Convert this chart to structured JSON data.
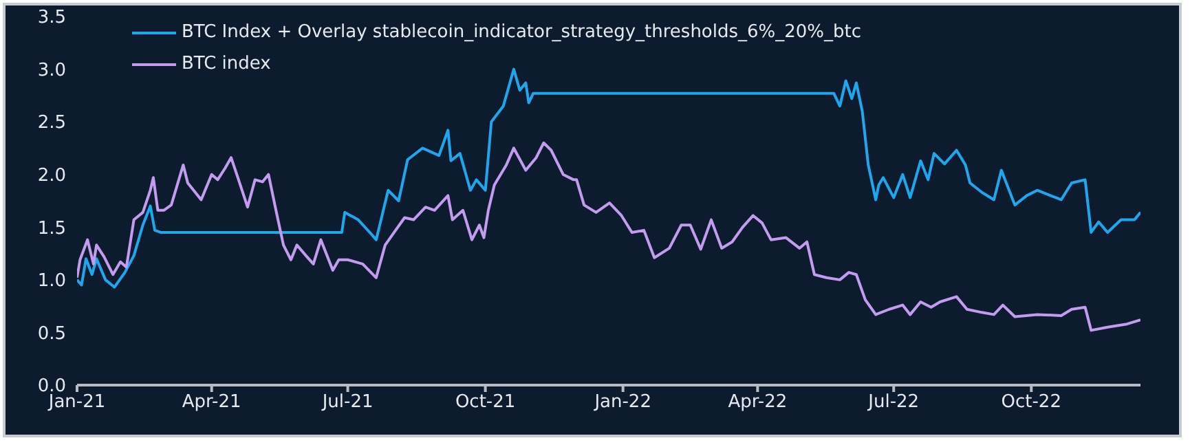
{
  "chart_data": {
    "type": "line",
    "legend": "top left",
    "grid": false,
    "marker": "none",
    "line_style": "solid",
    "xlim": [
      "2021-01-01",
      "2022-12-13"
    ],
    "xticks": [
      {
        "value": "2021-01-01",
        "label": "Jan-21"
      },
      {
        "value": "2021-04-01",
        "label": "Apr-21"
      },
      {
        "value": "2021-07-01",
        "label": "Jul-21"
      },
      {
        "value": "2021-10-01",
        "label": "Oct-21"
      },
      {
        "value": "2022-01-01",
        "label": "Jan-22"
      },
      {
        "value": "2022-04-01",
        "label": "Apr-22"
      },
      {
        "value": "2022-07-01",
        "label": "Jul-22"
      },
      {
        "value": "2022-10-01",
        "label": "Oct-22"
      }
    ],
    "ylim": [
      0,
      3.5
    ],
    "yticks": [
      {
        "value": 0,
        "label": "0.0"
      },
      {
        "value": 0.5,
        "label": "0.5"
      },
      {
        "value": 1,
        "label": "1.0"
      },
      {
        "value": 1.5,
        "label": "1.5"
      },
      {
        "value": 2,
        "label": "2.0"
      },
      {
        "value": 2.5,
        "label": "2.5"
      },
      {
        "value": 3,
        "label": "3.0"
      },
      {
        "value": 3.5,
        "label": "3.5"
      }
    ],
    "series": [
      {
        "name": "BTC Index + Overlay stablecoin_indicator_strategy_thresholds_6%_20%_btc",
        "color": "#1ea7ec",
        "x": [
          "2021-01-01",
          "2021-01-04",
          "2021-01-07",
          "2021-01-11",
          "2021-01-14",
          "2021-01-20",
          "2021-01-26",
          "2021-02-02",
          "2021-02-08",
          "2021-02-14",
          "2021-02-19",
          "2021-02-22",
          "2021-02-26",
          "2021-06-27",
          "2021-06-29",
          "2021-07-08",
          "2021-07-17",
          "2021-07-20",
          "2021-07-28",
          "2021-08-04",
          "2021-08-10",
          "2021-08-20",
          "2021-08-31",
          "2021-09-06",
          "2021-09-08",
          "2021-09-14",
          "2021-09-21",
          "2021-09-25",
          "2021-10-01",
          "2021-10-05",
          "2021-10-13",
          "2021-10-20",
          "2021-10-24",
          "2021-10-28",
          "2021-10-30",
          "2021-11-02",
          "2022-05-22",
          "2022-05-26",
          "2022-05-30",
          "2022-06-03",
          "2022-06-06",
          "2022-06-10",
          "2022-06-14",
          "2022-06-19",
          "2022-06-21",
          "2022-06-24",
          "2022-07-01",
          "2022-07-07",
          "2022-07-12",
          "2022-07-19",
          "2022-07-24",
          "2022-07-28",
          "2022-08-04",
          "2022-08-12",
          "2022-08-18",
          "2022-08-21",
          "2022-08-29",
          "2022-09-06",
          "2022-09-11",
          "2022-09-20",
          "2022-09-28",
          "2022-10-05",
          "2022-10-21",
          "2022-10-28",
          "2022-11-06",
          "2022-11-10",
          "2022-11-15",
          "2022-11-21",
          "2022-11-30",
          "2022-12-09",
          "2022-12-13"
        ],
        "values": [
          1.0,
          0.95,
          1.2,
          1.05,
          1.2,
          1.0,
          0.93,
          1.07,
          1.23,
          1.52,
          1.7,
          1.47,
          1.45,
          1.45,
          1.64,
          1.57,
          1.43,
          1.38,
          1.85,
          1.75,
          2.14,
          2.25,
          2.18,
          2.42,
          2.13,
          2.2,
          1.85,
          1.95,
          1.85,
          2.5,
          2.65,
          3.0,
          2.8,
          2.87,
          2.68,
          2.77,
          2.77,
          2.65,
          2.89,
          2.72,
          2.87,
          2.6,
          2.09,
          1.76,
          1.9,
          1.97,
          1.78,
          2.0,
          1.78,
          2.13,
          1.95,
          2.2,
          2.1,
          2.23,
          2.09,
          1.92,
          1.83,
          1.76,
          2.04,
          1.71,
          1.8,
          1.85,
          1.76,
          1.92,
          1.95,
          1.45,
          1.55,
          1.45,
          1.57,
          1.57,
          1.64
        ]
      },
      {
        "name": "BTC index",
        "color": "#c39cf0",
        "x": [
          "2021-01-01",
          "2021-01-03",
          "2021-01-08",
          "2021-01-12",
          "2021-01-14",
          "2021-01-19",
          "2021-01-25",
          "2021-01-30",
          "2021-02-03",
          "2021-02-08",
          "2021-02-14",
          "2021-02-19",
          "2021-02-21",
          "2021-02-24",
          "2021-02-28",
          "2021-03-05",
          "2021-03-13",
          "2021-03-16",
          "2021-03-25",
          "2021-04-01",
          "2021-04-05",
          "2021-04-10",
          "2021-04-14",
          "2021-04-19",
          "2021-04-25",
          "2021-04-30",
          "2021-05-05",
          "2021-05-09",
          "2021-05-14",
          "2021-05-19",
          "2021-05-24",
          "2021-05-28",
          "2021-06-03",
          "2021-06-08",
          "2021-06-13",
          "2021-06-21",
          "2021-06-25",
          "2021-07-01",
          "2021-07-11",
          "2021-07-20",
          "2021-07-26",
          "2021-08-01",
          "2021-08-08",
          "2021-08-14",
          "2021-08-22",
          "2021-08-28",
          "2021-09-06",
          "2021-09-09",
          "2021-09-16",
          "2021-09-22",
          "2021-09-27",
          "2021-09-30",
          "2021-10-03",
          "2021-10-07",
          "2021-10-15",
          "2021-10-20",
          "2021-10-28",
          "2021-11-04",
          "2021-11-09",
          "2021-11-14",
          "2021-11-22",
          "2021-11-29",
          "2021-12-01",
          "2021-12-06",
          "2021-12-14",
          "2021-12-23",
          "2021-12-31",
          "2022-01-07",
          "2022-01-15",
          "2022-01-22",
          "2022-02-01",
          "2022-02-09",
          "2022-02-15",
          "2022-02-22",
          "2022-03-01",
          "2022-03-08",
          "2022-03-15",
          "2022-03-22",
          "2022-03-29",
          "2022-04-04",
          "2022-04-10",
          "2022-04-20",
          "2022-04-29",
          "2022-05-04",
          "2022-05-09",
          "2022-05-17",
          "2022-05-26",
          "2022-06-01",
          "2022-06-06",
          "2022-06-12",
          "2022-06-19",
          "2022-06-28",
          "2022-07-07",
          "2022-07-12",
          "2022-07-19",
          "2022-07-26",
          "2022-08-01",
          "2022-08-12",
          "2022-08-19",
          "2022-08-29",
          "2022-09-06",
          "2022-09-12",
          "2022-09-20",
          "2022-10-05",
          "2022-10-21",
          "2022-10-28",
          "2022-11-06",
          "2022-11-10",
          "2022-11-21",
          "2022-12-04",
          "2022-12-13"
        ],
        "values": [
          1.02,
          1.19,
          1.38,
          1.15,
          1.33,
          1.22,
          1.05,
          1.17,
          1.12,
          1.57,
          1.64,
          1.85,
          1.97,
          1.66,
          1.66,
          1.71,
          2.09,
          1.92,
          1.76,
          2.0,
          1.95,
          2.06,
          2.16,
          1.95,
          1.69,
          1.95,
          1.93,
          2.0,
          1.66,
          1.33,
          1.19,
          1.33,
          1.23,
          1.15,
          1.38,
          1.09,
          1.19,
          1.19,
          1.15,
          1.02,
          1.33,
          1.45,
          1.59,
          1.57,
          1.69,
          1.66,
          1.8,
          1.57,
          1.66,
          1.38,
          1.52,
          1.4,
          1.66,
          1.9,
          2.09,
          2.25,
          2.04,
          2.16,
          2.3,
          2.23,
          2.0,
          1.95,
          1.95,
          1.71,
          1.64,
          1.73,
          1.61,
          1.45,
          1.47,
          1.21,
          1.3,
          1.52,
          1.52,
          1.29,
          1.57,
          1.3,
          1.36,
          1.5,
          1.61,
          1.54,
          1.38,
          1.4,
          1.3,
          1.36,
          1.05,
          1.02,
          1.0,
          1.07,
          1.05,
          0.81,
          0.67,
          0.72,
          0.76,
          0.67,
          0.79,
          0.74,
          0.79,
          0.84,
          0.72,
          0.69,
          0.67,
          0.76,
          0.65,
          0.67,
          0.66,
          0.72,
          0.74,
          0.52,
          0.55,
          0.58,
          0.62
        ]
      }
    ]
  }
}
